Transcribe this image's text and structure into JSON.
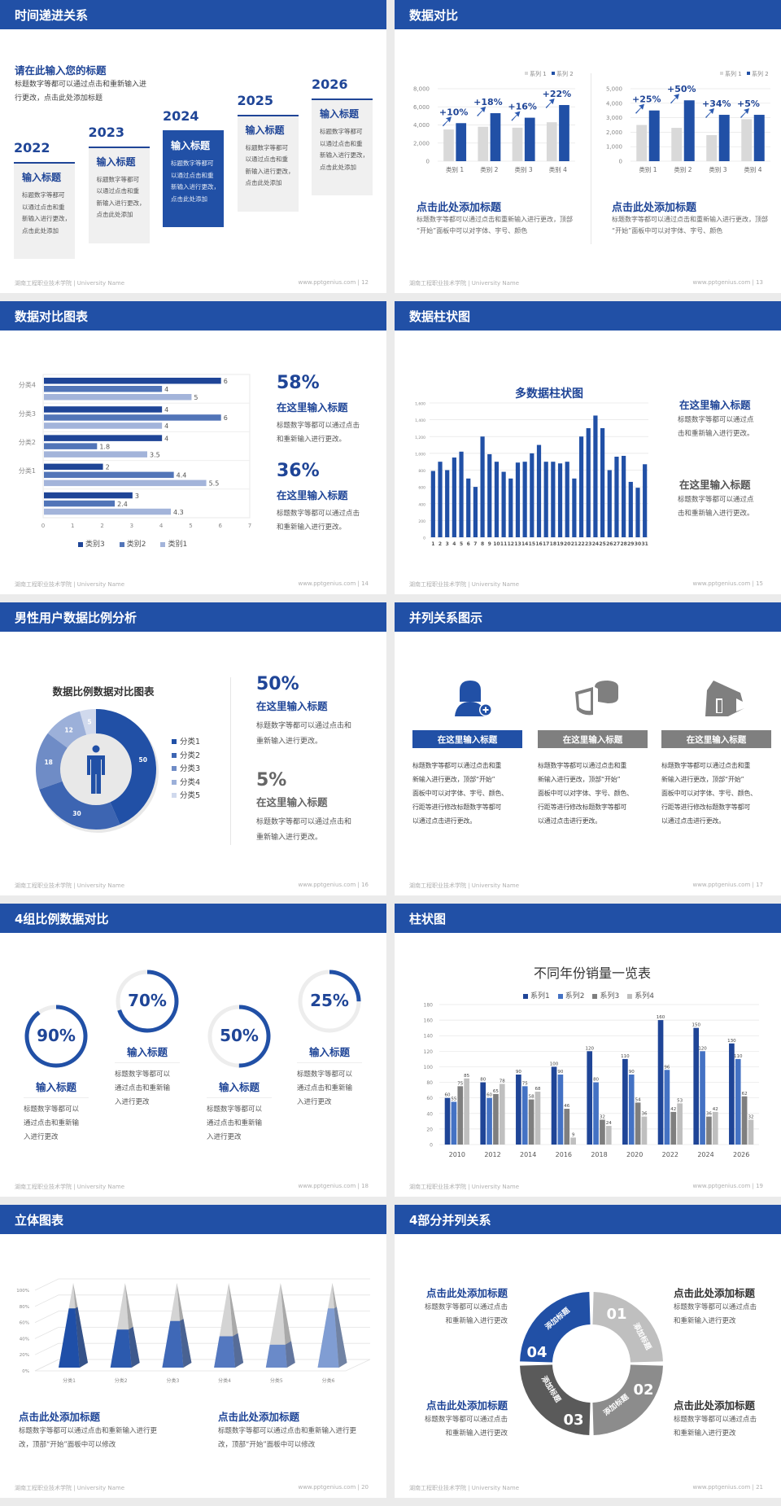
{
  "footer": {
    "school": "湖南工程职业技术学院 | University Name",
    "site": "www.pptgenius.com"
  },
  "colors": {
    "brand_blue": "#2150a6",
    "text_blue": "#1f4597",
    "gray": "#7f7f7f",
    "light_gray": "#d9d9d9"
  },
  "s12": {
    "title": "时间递进关系",
    "page": "| 12",
    "heading": "请在此输入您的标题",
    "desc": "标题数字等都可以通过点击和重新输入进\n行更改，点击此处添加标题",
    "steps": [
      {
        "year": "2022",
        "title": "输入标题",
        "text": "标题数字等都可\n以通过点击和重\n新输入进行更改，\n点击此处添加",
        "highlight": false
      },
      {
        "year": "2023",
        "title": "输入标题",
        "text": "标题数字等都可\n以通过点击和重\n新输入进行更改，\n点击此处添加",
        "highlight": false
      },
      {
        "year": "2024",
        "title": "输入标题",
        "text": "标题数字等都可\n以通过点击和重\n新输入进行更改，\n点击此处添加",
        "highlight": true
      },
      {
        "year": "2025",
        "title": "输入标题",
        "text": "标题数字等都可\n以通过点击和重\n新输入进行更改，\n点击此处添加",
        "highlight": false
      },
      {
        "year": "2026",
        "title": "输入标题",
        "text": "标题数字等都可\n以通过点击和重\n新输入进行更改，\n点击此处添加",
        "highlight": false
      }
    ]
  },
  "s13": {
    "title": "数据对比",
    "page": "| 13",
    "blocks": [
      {
        "title": "点击此处添加标题",
        "text": "标题数字等都可以通过点击和重新输入进行更改，顶部\n“开始”面板中可以对字体、字号、颜色"
      },
      {
        "title": "点击此处添加标题",
        "text": "标题数字等都可以通过点击和重新输入进行更改，顶部\n“开始”面板中可以对字体、字号、颜色"
      }
    ]
  },
  "s14": {
    "title": "数据对比图表",
    "page": "| 14",
    "stats": [
      {
        "value": "58%",
        "title": "在这里输入标题",
        "text": "标题数字等都可以通过点击\n和重新输入进行更改。"
      },
      {
        "value": "36%",
        "title": "在这里输入标题",
        "text": "标题数字等都可以通过点击\n和重新输入进行更改。"
      }
    ]
  },
  "s15": {
    "title": "数据柱状图",
    "page": "| 15",
    "blocks": [
      {
        "title": "在这里输入标题",
        "text": "标题数字等都可以通过点\n击和重新输入进行更改。"
      },
      {
        "title": "在这里输入标题",
        "text": "标题数字等都可以通过点\n击和重新输入进行更改。"
      }
    ]
  },
  "s16": {
    "title": "男性用户数据比例分析",
    "page": "| 16",
    "stats": [
      {
        "value": "50%",
        "title": "在这里输入标题",
        "text": "标题数字等都可以通过点击和\n重新输入进行更改。"
      },
      {
        "value": "5%",
        "title": "在这里输入标题",
        "text": "标题数字等都可以通过点击和\n重新输入进行更改。"
      }
    ]
  },
  "s17": {
    "title": "并列关系图示",
    "page": "| 17",
    "columns": [
      {
        "icon": "person-add-icon",
        "label": "在这里输入标题",
        "text": "标题数字等都可以通过点击和重\n新输入进行更改，顶部“开始”\n面板中可以对字体、字号、颜色、\n行距等进行修改标题数字等都可\n以通过点击进行更改。",
        "active": true
      },
      {
        "icon": "pie-chart-3d-icon",
        "label": "在这里输入标题",
        "text": "标题数字等都可以通过点击和重\n新输入进行更改，顶部“开始”\n面板中可以对字体、字号、颜色、\n行距等进行修改标题数字等都可\n以通过点击进行更改。",
        "active": false
      },
      {
        "icon": "store-icon",
        "label": "在这里输入标题",
        "text": "标题数字等都可以通过点击和重\n新输入进行更改，顶部“开始”\n面板中可以对字体、字号、颜色、\n行距等进行修改标题数字等都可\n以通过点击进行更改。",
        "active": false
      }
    ]
  },
  "s18": {
    "title": "4组比例数据对比",
    "page": "| 18",
    "items": [
      {
        "value": "90%",
        "title": "输入标题",
        "text": "标题数字等都可以\n通过点击和重新输\n入进行更改"
      },
      {
        "value": "70%",
        "title": "输入标题",
        "text": "标题数字等都可以\n通过点击和重新输\n入进行更改"
      },
      {
        "value": "50%",
        "title": "输入标题",
        "text": "标题数字等都可以\n通过点击和重新输\n入进行更改"
      },
      {
        "value": "25%",
        "title": "输入标题",
        "text": "标题数字等都可以\n通过点击和重新输\n入进行更改"
      }
    ]
  },
  "s19": {
    "title": "柱状图",
    "page": "| 19"
  },
  "s20": {
    "title": "立体图表",
    "page": "| 20",
    "blocks": [
      {
        "title": "点击此处添加标题",
        "text": "标题数字等都可以通过点击和重新输入进行更\n改，顶部“开始”面板中可以修改"
      },
      {
        "title": "点击此处添加标题",
        "text": "标题数字等都可以通过点击和重新输入进行更\n改，顶部“开始”面板中可以修改"
      }
    ]
  },
  "s21": {
    "title": "4部分并列关系",
    "page": "| 21",
    "segments": [
      {
        "num": "01",
        "label": "添加标题",
        "color": "#bfbfbf"
      },
      {
        "num": "02",
        "label": "添加标题",
        "color": "#8c8c8c"
      },
      {
        "num": "03",
        "label": "添加标题",
        "color": "#5a5a5a"
      },
      {
        "num": "04",
        "label": "添加标题",
        "color": "#2150a6"
      }
    ],
    "blocks": [
      {
        "title": "点击此处添加标题",
        "text": "标题数字等都可以通过点击\n和重新输入进行更改"
      },
      {
        "title": "点击此处添加标题",
        "text": "标题数字等都可以通过点击\n和重新输入进行更改"
      },
      {
        "title": "点击此处添加标题",
        "text": "标题数字等都可以通过点击\n和重新输入进行更改"
      },
      {
        "title": "点击此处添加标题",
        "text": "标题数字等都可以通过点击\n和重新输入进行更改"
      }
    ]
  },
  "chart_data": [
    {
      "id": "s13-left",
      "type": "bar",
      "categories": [
        "类别 1",
        "类别 2",
        "类别 3",
        "类别 4"
      ],
      "ylim": [
        0,
        8000
      ],
      "ystep": 2000,
      "grid": true,
      "legend": "top-right",
      "series": [
        {
          "name": "系列 1",
          "values": [
            3500,
            3800,
            3700,
            4300
          ],
          "color": "#d9d9d9"
        },
        {
          "name": "系列 2",
          "values": [
            4200,
            5300,
            4800,
            6200
          ],
          "color": "#2150a6"
        }
      ],
      "annotations": [
        "+10%",
        "+18%",
        "+16%",
        "+22%"
      ]
    },
    {
      "id": "s13-right",
      "type": "bar",
      "categories": [
        "类别 1",
        "类别 2",
        "类别 3",
        "类别 4"
      ],
      "ylim": [
        0,
        5000
      ],
      "ystep": 1000,
      "grid": true,
      "legend": "top-right",
      "series": [
        {
          "name": "系列 1",
          "values": [
            2500,
            2300,
            1800,
            2900
          ],
          "color": "#d9d9d9"
        },
        {
          "name": "系列 2",
          "values": [
            3500,
            4200,
            3200,
            3200
          ],
          "color": "#2150a6"
        }
      ],
      "annotations": [
        "+25%",
        "+50%",
        "+34%",
        "+5%"
      ]
    },
    {
      "id": "s14",
      "type": "bar",
      "orientation": "horizontal",
      "categories": [
        "分类4",
        "分类3",
        "分类2",
        "分类1",
        ""
      ],
      "xlim": [
        0,
        7
      ],
      "legend": "bottom",
      "series": [
        {
          "name": "类别3",
          "values": [
            6,
            4,
            4,
            2,
            3
          ],
          "color": "#1f4597"
        },
        {
          "name": "类别2",
          "values": [
            4,
            6,
            1.8,
            4.4,
            2.4
          ],
          "color": "#5275b8"
        },
        {
          "name": "类别1",
          "values": [
            5,
            4,
            3.5,
            5.5,
            4.3
          ],
          "color": "#a3b4da"
        }
      ]
    },
    {
      "id": "s15",
      "type": "bar",
      "title": "多数据柱状图",
      "categories": [
        "1",
        "2",
        "3",
        "4",
        "5",
        "6",
        "7",
        "8",
        "9",
        "10",
        "11",
        "12",
        "13",
        "14",
        "15",
        "16",
        "17",
        "18",
        "19",
        "20",
        "21",
        "22",
        "23",
        "24",
        "25",
        "26",
        "27",
        "28",
        "29",
        "30",
        "31"
      ],
      "ylim": [
        0,
        1600
      ],
      "ystep": 200,
      "grid": true,
      "series": [
        {
          "values": [
            790,
            900,
            800,
            950,
            1020,
            700,
            600,
            1200,
            990,
            900,
            780,
            700,
            890,
            900,
            1000,
            1100,
            900,
            900,
            880,
            900,
            700,
            1200,
            1300,
            1450,
            1300,
            800,
            960,
            970,
            660,
            590,
            870
          ],
          "color": "#2150a6"
        }
      ]
    },
    {
      "id": "s16",
      "type": "pie",
      "variant": "donut",
      "title": "数据比例数据对比图表",
      "legend": "right",
      "categories": [
        "分类1",
        "分类2",
        "分类3",
        "分类4",
        "分类5"
      ],
      "values": [
        50,
        30,
        18,
        12,
        5
      ],
      "colors": [
        "#2150a6",
        "#3d65b2",
        "#6f8cc6",
        "#9cb0d9",
        "#d0d9ed"
      ]
    },
    {
      "id": "s18",
      "type": "pie",
      "variant": "progress-rings",
      "values": [
        90,
        70,
        50,
        25
      ]
    },
    {
      "id": "s19",
      "type": "bar",
      "title": "不同年份销量一览表",
      "categories": [
        "2010",
        "2012",
        "2014",
        "2016",
        "2018",
        "2020",
        "2022",
        "2024",
        "2026"
      ],
      "ylim": [
        0,
        180
      ],
      "ystep": 20,
      "grid": true,
      "legend": "top",
      "series": [
        {
          "name": "系列1",
          "values": [
            60,
            80,
            90,
            100,
            120,
            110,
            160,
            150,
            130
          ],
          "color": "#1f4597"
        },
        {
          "name": "系列2",
          "values": [
            55,
            60,
            75,
            90,
            80,
            90,
            96,
            120,
            110
          ],
          "color": "#4472c4"
        },
        {
          "name": "系列3",
          "values": [
            75,
            65,
            58,
            46,
            32,
            54,
            42,
            36,
            62
          ],
          "color": "#7f7f7f"
        },
        {
          "name": "系列4",
          "values": [
            85,
            78,
            68,
            9,
            24,
            36,
            53,
            42,
            32
          ],
          "color": "#bfbfbf"
        }
      ]
    },
    {
      "id": "s20",
      "type": "bar",
      "variant": "3d-pyramid-100",
      "categories": [
        "分类1",
        "分类2",
        "分类3",
        "分类4",
        "分类5",
        "分类6"
      ],
      "ylim": [
        0,
        100
      ],
      "ystep": 20,
      "yunit": "%",
      "grid": true,
      "values": [
        70,
        45,
        55,
        37,
        27,
        70
      ],
      "colors": [
        "#1f4fa8",
        "#2c5aae",
        "#3f68b7",
        "#5478c0",
        "#6a8ac9",
        "#809dd3"
      ]
    }
  ]
}
